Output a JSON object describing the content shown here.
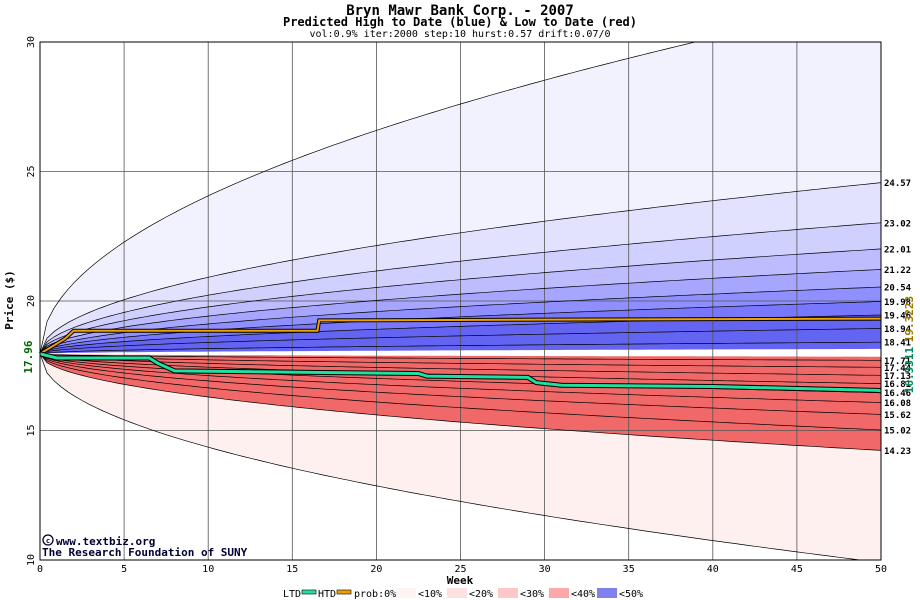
{
  "chart_data": {
    "type": "area",
    "title": "Bryn Mawr Bank Corp. - 2007",
    "subtitle": "Predicted High to Date (blue) &  Low to Date (red)",
    "params": "vol:0.9% iter:2000 step:10 hurst:0.57 drift:0.07/0",
    "xlabel": "Week",
    "ylabel": "Price ($)",
    "xlim": [
      0,
      50
    ],
    "ylim": [
      10,
      30
    ],
    "x_ticks": [
      0,
      5,
      10,
      15,
      20,
      25,
      30,
      35,
      40,
      45,
      50
    ],
    "y_ticks": [
      10,
      15,
      20,
      25,
      30
    ],
    "grid": true,
    "start_price": "17.96",
    "htd_final": "19.3223",
    "ltd_final": "16.5311",
    "upper_band_levels": [
      {
        "label": "24.57",
        "value": 24.57
      },
      {
        "label": "23.02",
        "value": 23.02
      },
      {
        "label": "22.01",
        "value": 22.01
      },
      {
        "label": "21.22",
        "value": 21.22
      },
      {
        "label": "20.54",
        "value": 20.54
      },
      {
        "label": "19.98",
        "value": 19.98
      },
      {
        "label": "19.46",
        "value": 19.46
      },
      {
        "label": "18.94",
        "value": 18.94
      },
      {
        "label": "18.41",
        "value": 18.41
      }
    ],
    "lower_band_levels": [
      {
        "label": "17.71",
        "value": 17.71
      },
      {
        "label": "17.44",
        "value": 17.44
      },
      {
        "label": "17.13",
        "value": 17.13
      },
      {
        "label": "16.81",
        "value": 16.81
      },
      {
        "label": "16.46",
        "value": 16.46
      },
      {
        "label": "16.08",
        "value": 16.08
      },
      {
        "label": "15.62",
        "value": 15.62
      },
      {
        "label": "15.02",
        "value": 15.02
      },
      {
        "label": "14.23",
        "value": 14.23
      }
    ],
    "htd_series": [
      {
        "x": 0,
        "y": 17.96
      },
      {
        "x": 1.5,
        "y": 18.55
      },
      {
        "x": 2,
        "y": 18.85
      },
      {
        "x": 16.5,
        "y": 18.85
      },
      {
        "x": 16.6,
        "y": 19.25
      },
      {
        "x": 50,
        "y": 19.32
      }
    ],
    "ltd_series": [
      {
        "x": 0,
        "y": 17.96
      },
      {
        "x": 1,
        "y": 17.8
      },
      {
        "x": 6.5,
        "y": 17.8
      },
      {
        "x": 7,
        "y": 17.6
      },
      {
        "x": 8,
        "y": 17.3
      },
      {
        "x": 22.5,
        "y": 17.2
      },
      {
        "x": 23,
        "y": 17.1
      },
      {
        "x": 29,
        "y": 17.05
      },
      {
        "x": 29.5,
        "y": 16.85
      },
      {
        "x": 31,
        "y": 16.75
      },
      {
        "x": 40,
        "y": 16.7
      },
      {
        "x": 49.8,
        "y": 16.55
      },
      {
        "x": 50,
        "y": 16.53
      }
    ],
    "colors": {
      "htd": "#f0a000",
      "ltd": "#20e0a0",
      "blue_bands": [
        "#f2f2ff",
        "#e2e2ff",
        "#d0d0ff",
        "#bcbcff",
        "#a6a6ff",
        "#8f8fff",
        "#7878ff",
        "#6464f2"
      ],
      "red_bands": [
        "#fff0f0",
        "#ffe0e0",
        "#ffcccc",
        "#ffb8b8",
        "#ffa2a2",
        "#ff8e8e",
        "#ff7b7b",
        "#f06868"
      ],
      "htd_label": "#9a7800",
      "ltd_label": "#008a60",
      "start_label": "#006600"
    }
  },
  "legend": {
    "ltd": "LTD",
    "htd": "HTD",
    "prob": "prob:0%",
    "p10": "<10%",
    "p20": "<20%",
    "p30": "<30%",
    "p40": "<40%",
    "p50": "<50%"
  },
  "credits": {
    "site": "www.textbiz.org",
    "org": "The Research Foundation of SUNY"
  }
}
